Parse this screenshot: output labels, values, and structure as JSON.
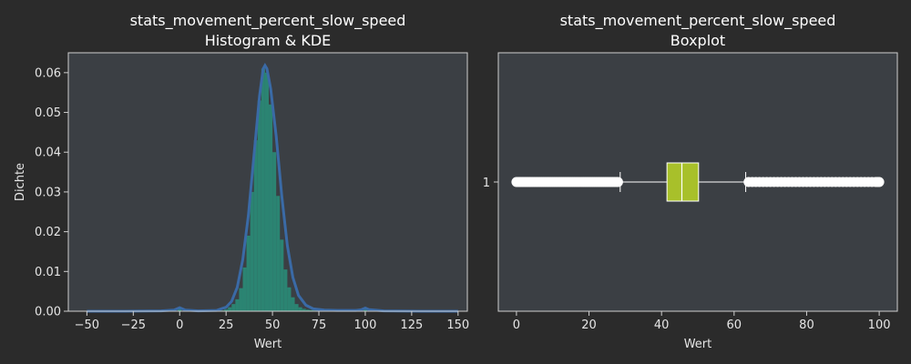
{
  "chart_data": [
    {
      "type": "histogram",
      "title": "stats_movement_percent_slow_speed\nHistogram & KDE",
      "xlabel": "Wert",
      "ylabel": "Dichte",
      "xlim": [
        -60,
        155
      ],
      "ylim": [
        0,
        0.065
      ],
      "xticks": [
        -50,
        -25,
        0,
        25,
        50,
        75,
        100,
        125,
        150
      ],
      "yticks": [
        0.0,
        0.01,
        0.02,
        0.03,
        0.04,
        0.05,
        0.06
      ],
      "bins": {
        "x": [
          20,
          22,
          24,
          26,
          28,
          30,
          32,
          34,
          36,
          38,
          40,
          42,
          44,
          46,
          48,
          50,
          52,
          54,
          56,
          58,
          60,
          62,
          64,
          66,
          68,
          70,
          72,
          74,
          76,
          78,
          80
        ],
        "density": [
          0.0001,
          0.0002,
          0.0005,
          0.001,
          0.0018,
          0.003,
          0.0058,
          0.011,
          0.019,
          0.03,
          0.043,
          0.053,
          0.061,
          0.06,
          0.052,
          0.04,
          0.029,
          0.018,
          0.0105,
          0.006,
          0.0035,
          0.0018,
          0.001,
          0.0006,
          0.0004,
          0.0003,
          0.0002,
          0.0002,
          0.0001,
          0.0001,
          0.0001
        ]
      },
      "bin_spikes": [
        {
          "x": 0,
          "density": 0.0009
        },
        {
          "x": 100,
          "density": 0.0007
        }
      ],
      "kde": {
        "x": [
          -50,
          -30,
          -10,
          -3,
          0,
          3,
          10,
          20,
          25,
          28,
          31,
          34,
          37,
          40,
          43,
          45,
          46,
          47,
          49,
          52,
          55,
          58,
          61,
          64,
          68,
          72,
          78,
          85,
          95,
          98,
          100,
          102,
          110,
          130,
          150
        ],
        "y": [
          0,
          0,
          0.0001,
          0.0003,
          0.0009,
          0.0003,
          0.0001,
          0.0002,
          0.001,
          0.0025,
          0.006,
          0.013,
          0.024,
          0.039,
          0.054,
          0.061,
          0.0618,
          0.061,
          0.056,
          0.044,
          0.029,
          0.0165,
          0.0085,
          0.004,
          0.0015,
          0.0006,
          0.0003,
          0.0002,
          0.0002,
          0.0004,
          0.0008,
          0.0004,
          0.0001,
          0,
          0
        ]
      },
      "colors": {
        "background": "#3b3f44",
        "bars": "#2a8c78",
        "kde": "#3a6aa6"
      }
    },
    {
      "type": "boxplot",
      "title": "stats_movement_percent_slow_speed\nBoxplot",
      "xlabel": "Wert",
      "xlim": [
        -5,
        105
      ],
      "xticks": [
        0,
        20,
        40,
        60,
        80,
        100
      ],
      "yticks": [
        "1"
      ],
      "box": {
        "whisker_low": 28.6,
        "q1": 41.5,
        "median": 45.6,
        "q3": 50.2,
        "whisker_high": 63.2
      },
      "outliers": [
        0,
        0.4,
        0.8,
        1.2,
        1.6,
        2,
        2.4,
        2.8,
        3.2,
        3.6,
        4,
        4.5,
        5,
        5.5,
        6,
        6.5,
        7,
        7.5,
        8,
        8.5,
        9,
        9.5,
        10,
        10.5,
        11,
        11.5,
        12,
        12.5,
        13,
        13.5,
        14,
        14.5,
        15,
        15.5,
        16,
        16.5,
        17,
        17.5,
        18,
        18.5,
        19,
        19.5,
        20,
        20.5,
        21,
        21.5,
        22,
        22.5,
        23,
        23.5,
        24,
        24.5,
        25,
        25.5,
        26,
        26.5,
        27,
        27.5,
        28,
        64,
        65,
        66,
        67,
        68,
        69,
        70,
        71,
        72,
        73,
        74,
        75,
        76,
        77,
        78,
        79,
        80,
        81,
        82,
        83,
        84,
        85,
        86,
        87,
        88,
        89,
        90,
        91,
        92,
        93,
        94,
        95,
        96,
        97,
        98,
        99,
        99.5,
        100
      ],
      "colors": {
        "background": "#3b3f44",
        "box": "#a8c02a",
        "median": "#ffffff",
        "outlier": "#ffffff"
      }
    }
  ]
}
